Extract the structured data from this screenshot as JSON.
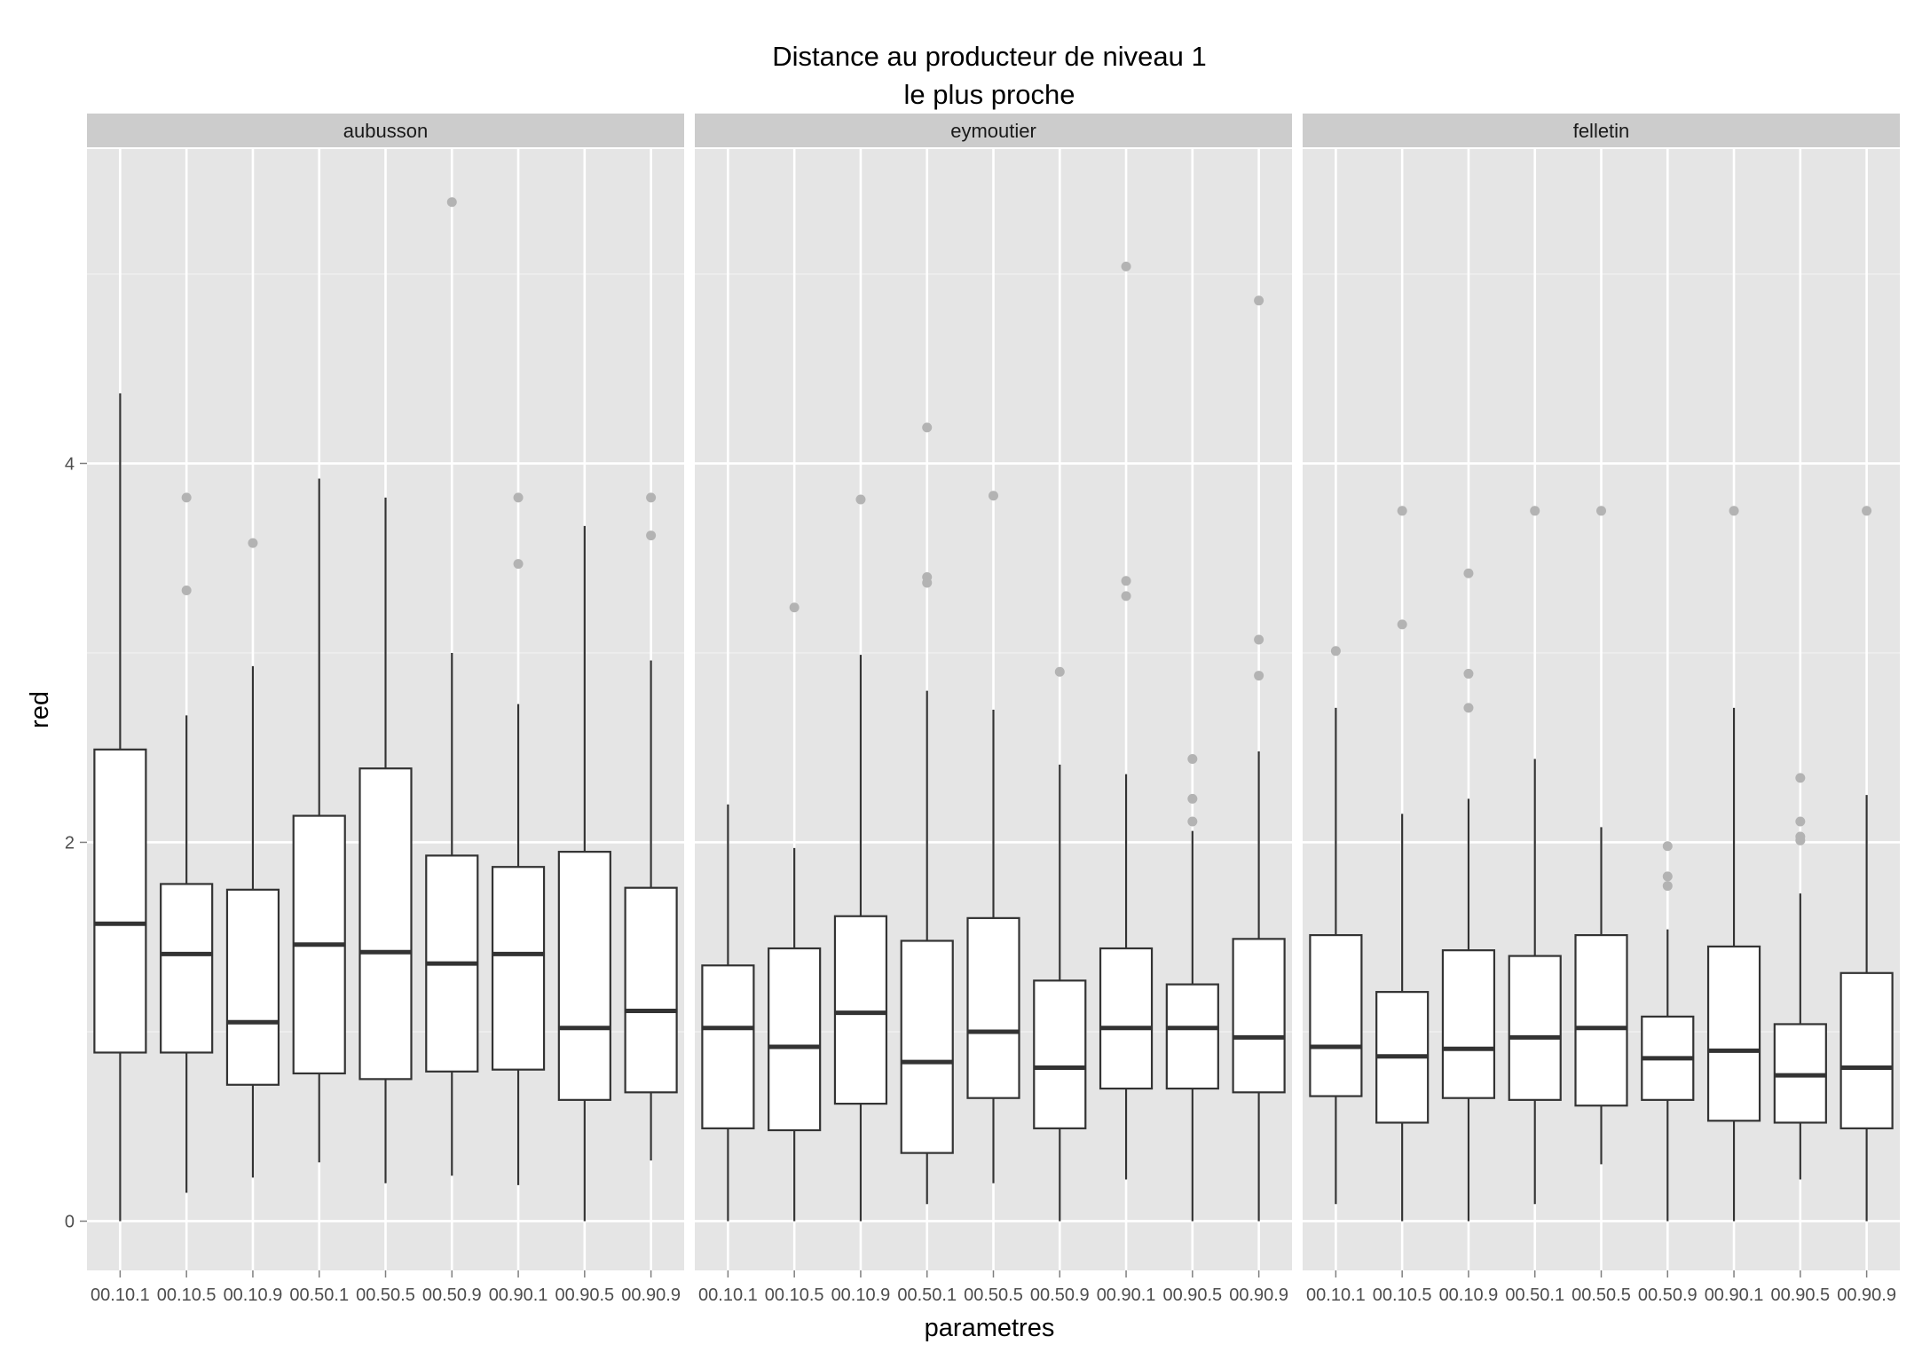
{
  "chart_data": {
    "type": "boxplot",
    "title_lines": [
      "Distance au producteur de niveau 1",
      "le plus proche"
    ],
    "xlabel": "parametres",
    "ylabel": "red",
    "ylim": [
      -0.26,
      5.66
    ],
    "yticks": [
      0,
      2,
      4
    ],
    "categories": [
      "00.10.1",
      "00.10.5",
      "00.10.9",
      "00.50.1",
      "00.50.5",
      "00.50.9",
      "00.90.1",
      "00.90.5",
      "00.90.9"
    ],
    "grid": true,
    "colors": {
      "panel_background": "#e5e5e5",
      "strip_background": "#cccccc",
      "grid_line": "#ffffff",
      "box_fill": "#ffffff",
      "box_line": "#333333",
      "outlier": "#b3b3b3"
    },
    "facets": [
      {
        "name": "aubusson",
        "boxes": [
          {
            "category": "00.10.1",
            "lower_whisker": 0.0,
            "q1": 0.89,
            "median": 1.57,
            "q3": 2.49,
            "upper_whisker": 4.37,
            "outliers": []
          },
          {
            "category": "00.10.5",
            "lower_whisker": 0.15,
            "q1": 0.89,
            "median": 1.41,
            "q3": 1.78,
            "upper_whisker": 2.67,
            "outliers": [
              3.33,
              3.82
            ]
          },
          {
            "category": "00.10.9",
            "lower_whisker": 0.23,
            "q1": 0.72,
            "median": 1.05,
            "q3": 1.75,
            "upper_whisker": 2.93,
            "outliers": [
              3.58
            ]
          },
          {
            "category": "00.50.1",
            "lower_whisker": 0.31,
            "q1": 0.78,
            "median": 1.46,
            "q3": 2.14,
            "upper_whisker": 3.92,
            "outliers": []
          },
          {
            "category": "00.50.5",
            "lower_whisker": 0.2,
            "q1": 0.75,
            "median": 1.42,
            "q3": 2.39,
            "upper_whisker": 3.82,
            "outliers": []
          },
          {
            "category": "00.50.9",
            "lower_whisker": 0.24,
            "q1": 0.79,
            "median": 1.36,
            "q3": 1.93,
            "upper_whisker": 3.0,
            "outliers": [
              5.38
            ]
          },
          {
            "category": "00.90.1",
            "lower_whisker": 0.19,
            "q1": 0.8,
            "median": 1.41,
            "q3": 1.87,
            "upper_whisker": 2.73,
            "outliers": [
              3.47,
              3.82
            ]
          },
          {
            "category": "00.90.5",
            "lower_whisker": 0.0,
            "q1": 0.64,
            "median": 1.02,
            "q3": 1.95,
            "upper_whisker": 3.67,
            "outliers": []
          },
          {
            "category": "00.90.9",
            "lower_whisker": 0.32,
            "q1": 0.68,
            "median": 1.11,
            "q3": 1.76,
            "upper_whisker": 2.96,
            "outliers": [
              3.62,
              3.82
            ]
          }
        ]
      },
      {
        "name": "eymoutier",
        "boxes": [
          {
            "category": "00.10.1",
            "lower_whisker": 0.0,
            "q1": 0.49,
            "median": 1.02,
            "q3": 1.35,
            "upper_whisker": 2.2,
            "outliers": []
          },
          {
            "category": "00.10.5",
            "lower_whisker": 0.0,
            "q1": 0.48,
            "median": 0.92,
            "q3": 1.44,
            "upper_whisker": 1.97,
            "outliers": [
              3.24
            ]
          },
          {
            "category": "00.10.9",
            "lower_whisker": 0.0,
            "q1": 0.62,
            "median": 1.1,
            "q3": 1.61,
            "upper_whisker": 2.99,
            "outliers": [
              3.81
            ]
          },
          {
            "category": "00.50.1",
            "lower_whisker": 0.09,
            "q1": 0.36,
            "median": 0.84,
            "q3": 1.48,
            "upper_whisker": 2.8,
            "outliers": [
              3.37,
              3.4,
              4.19
            ]
          },
          {
            "category": "00.50.5",
            "lower_whisker": 0.2,
            "q1": 0.65,
            "median": 1.0,
            "q3": 1.6,
            "upper_whisker": 2.7,
            "outliers": [
              3.83
            ]
          },
          {
            "category": "00.50.9",
            "lower_whisker": 0.0,
            "q1": 0.49,
            "median": 0.81,
            "q3": 1.27,
            "upper_whisker": 2.41,
            "outliers": [
              2.9
            ]
          },
          {
            "category": "00.90.1",
            "lower_whisker": 0.22,
            "q1": 0.7,
            "median": 1.02,
            "q3": 1.44,
            "upper_whisker": 2.36,
            "outliers": [
              3.3,
              3.38,
              5.04
            ]
          },
          {
            "category": "00.90.5",
            "lower_whisker": 0.0,
            "q1": 0.7,
            "median": 1.02,
            "q3": 1.25,
            "upper_whisker": 2.06,
            "outliers": [
              2.11,
              2.23,
              2.44
            ]
          },
          {
            "category": "00.90.9",
            "lower_whisker": 0.0,
            "q1": 0.68,
            "median": 0.97,
            "q3": 1.49,
            "upper_whisker": 2.48,
            "outliers": [
              2.88,
              3.07,
              4.86
            ]
          }
        ]
      },
      {
        "name": "felletin",
        "boxes": [
          {
            "category": "00.10.1",
            "lower_whisker": 0.09,
            "q1": 0.66,
            "median": 0.92,
            "q3": 1.51,
            "upper_whisker": 2.71,
            "outliers": [
              3.01
            ]
          },
          {
            "category": "00.10.5",
            "lower_whisker": 0.0,
            "q1": 0.52,
            "median": 0.87,
            "q3": 1.21,
            "upper_whisker": 2.15,
            "outliers": [
              3.15,
              3.75
            ]
          },
          {
            "category": "00.10.9",
            "lower_whisker": 0.0,
            "q1": 0.65,
            "median": 0.91,
            "q3": 1.43,
            "upper_whisker": 2.23,
            "outliers": [
              2.71,
              2.89,
              3.42
            ]
          },
          {
            "category": "00.50.1",
            "lower_whisker": 0.09,
            "q1": 0.64,
            "median": 0.97,
            "q3": 1.4,
            "upper_whisker": 2.44,
            "outliers": [
              3.75
            ]
          },
          {
            "category": "00.50.5",
            "lower_whisker": 0.3,
            "q1": 0.61,
            "median": 1.02,
            "q3": 1.51,
            "upper_whisker": 2.08,
            "outliers": [
              3.75
            ]
          },
          {
            "category": "00.50.9",
            "lower_whisker": 0.0,
            "q1": 0.64,
            "median": 0.86,
            "q3": 1.08,
            "upper_whisker": 1.54,
            "outliers": [
              1.77,
              1.82,
              1.98
            ]
          },
          {
            "category": "00.90.1",
            "lower_whisker": 0.0,
            "q1": 0.53,
            "median": 0.9,
            "q3": 1.45,
            "upper_whisker": 2.71,
            "outliers": [
              3.75
            ]
          },
          {
            "category": "00.90.5",
            "lower_whisker": 0.22,
            "q1": 0.52,
            "median": 0.77,
            "q3": 1.04,
            "upper_whisker": 1.73,
            "outliers": [
              2.01,
              2.03,
              2.11,
              2.34
            ]
          },
          {
            "category": "00.90.9",
            "lower_whisker": 0.0,
            "q1": 0.49,
            "median": 0.81,
            "q3": 1.31,
            "upper_whisker": 2.25,
            "outliers": [
              3.75
            ]
          }
        ]
      }
    ]
  }
}
